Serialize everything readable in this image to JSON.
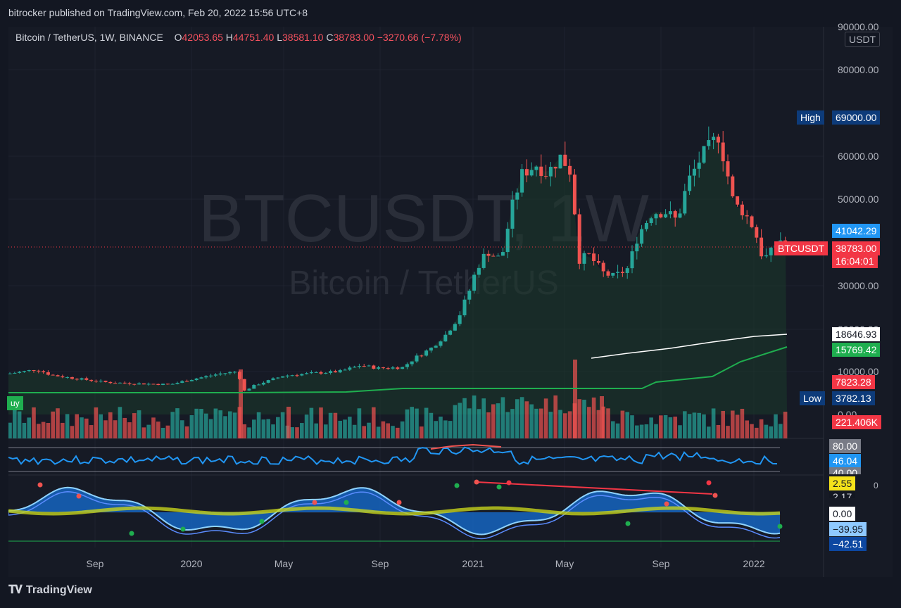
{
  "publisher_line": "bitrocker published on TradingView.com, Feb 20, 2022 15:56 UTC+8",
  "legend": {
    "symbol": "Bitcoin / TetherUS, 1W, BINANCE",
    "open_label": "O",
    "open": "42053.65",
    "high_label": "H",
    "high": "44751.40",
    "low_label": "L",
    "low": "38581.10",
    "close_label": "C",
    "close": "38783.00",
    "change": "−3270.66 (−7.78%)"
  },
  "watermark": {
    "line1": "BTCUSDT, 1W",
    "line2": "Bitcoin / TetherUS"
  },
  "price_axis": {
    "unit": "USDT",
    "ticks": [
      "90000.00",
      "80000.00",
      "60000.00",
      "50000.00",
      "30000.00",
      "20000.00",
      "10000.00",
      "0.00"
    ],
    "tick_values": [
      90000,
      80000,
      60000,
      50000,
      30000,
      20000,
      10000,
      0
    ]
  },
  "price_tags": {
    "high_label": "High",
    "high_value": "69000.00",
    "low_label": "Low",
    "low_value": "3782.13",
    "blue_value": "41042.29",
    "symbol_tag": "BTCUSDT",
    "last_price": "38783.00",
    "countdown": "16:04:01",
    "white_ma": "18646.93",
    "green_ma": "15769.42",
    "red_val": "7823.28",
    "volume": "221.406K"
  },
  "rsi": {
    "upper": "80.00",
    "value": "46.04",
    "lower": "40.00"
  },
  "oscillator": {
    "v1": "2.55",
    "v2": "2.17",
    "zero": "0.00",
    "v3": "−39.95",
    "v4": "−42.51",
    "v5": "0"
  },
  "badge_left": "uy",
  "time_axis": {
    "labels": [
      "Sep",
      "2020",
      "May",
      "Sep",
      "2021",
      "May",
      "Sep",
      "2022"
    ]
  },
  "footer_brand": "TradingView",
  "colors": {
    "up": "#26a69a",
    "down": "#ef5350",
    "bg": "#131722",
    "panel": "#161a25",
    "blue_tag": "#2196f3",
    "red_tag": "#f23645",
    "green_ma": "#22c55e",
    "navy_tag": "#0d3b7a"
  },
  "chart_data": {
    "type": "candlestick",
    "title": "Bitcoin / TetherUS, 1W, BINANCE",
    "ylabel": "USDT",
    "y_scale": "log",
    "ylim": [
      0,
      90000
    ],
    "x_labels": [
      "Sep",
      "2020",
      "May",
      "Sep",
      "2021",
      "May",
      "Sep",
      "2022"
    ],
    "candles_approx": [
      {
        "x": "2019-08",
        "o": 10400,
        "h": 12000,
        "l": 9500,
        "c": 10200
      },
      {
        "x": "2019-11",
        "o": 8300,
        "h": 9300,
        "l": 7000,
        "c": 7400
      },
      {
        "x": "2020-01",
        "o": 7200,
        "h": 9000,
        "l": 6900,
        "c": 8800
      },
      {
        "x": "2020-03",
        "o": 9000,
        "h": 9200,
        "l": 3782.13,
        "c": 5800
      },
      {
        "x": "2020-05",
        "o": 8800,
        "h": 10000,
        "l": 8500,
        "c": 9500
      },
      {
        "x": "2020-09",
        "o": 10400,
        "h": 11200,
        "l": 10000,
        "c": 10700
      },
      {
        "x": "2020-12",
        "o": 19000,
        "h": 24000,
        "l": 18500,
        "c": 23500
      },
      {
        "x": "2021-01",
        "o": 29000,
        "h": 41900,
        "l": 28000,
        "c": 34000
      },
      {
        "x": "2021-04",
        "o": 59000,
        "h": 64800,
        "l": 53000,
        "c": 57000
      },
      {
        "x": "2021-05",
        "o": 49000,
        "h": 59500,
        "l": 30000,
        "c": 35000
      },
      {
        "x": "2021-07",
        "o": 33000,
        "h": 35000,
        "l": 29300,
        "c": 32000
      },
      {
        "x": "2021-09",
        "o": 47000,
        "h": 52900,
        "l": 40000,
        "c": 43000
      },
      {
        "x": "2021-11",
        "o": 61000,
        "h": 69000,
        "l": 58000,
        "c": 65000
      },
      {
        "x": "2022-01",
        "o": 47000,
        "h": 48000,
        "l": 33000,
        "c": 36000
      },
      {
        "x": "2022-02",
        "o": 42053.65,
        "h": 44751.4,
        "l": 38581.1,
        "c": 38783.0
      }
    ],
    "ma_white_last": 18646.93,
    "ma_green_last": 15769.42,
    "last_volume": "221.406K",
    "rsi_last": 46.04
  }
}
